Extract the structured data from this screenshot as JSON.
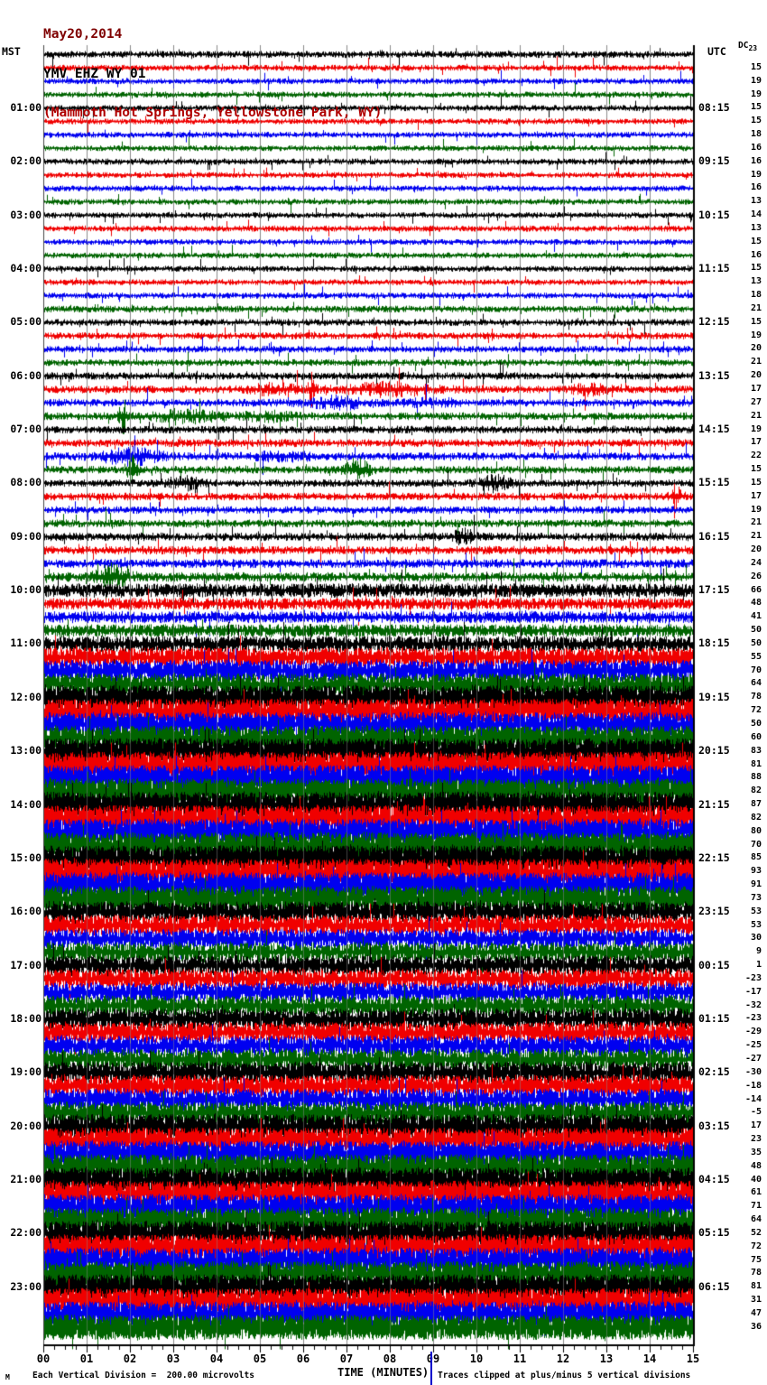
{
  "header": {
    "date": "May20,2014",
    "station": "YMV EHZ WY 01",
    "location": "(Mammoth Hot Springs, Yellowstone Park, WY)"
  },
  "labels": {
    "left_tz": "MST",
    "right_tz": "UTC",
    "dc_header_prefix": "DC"
  },
  "axis": {
    "title": "TIME (MINUTES)",
    "ticks": [
      "00",
      "01",
      "02",
      "03",
      "04",
      "05",
      "06",
      "07",
      "08",
      "09",
      "10",
      "11",
      "12",
      "13",
      "14",
      "15"
    ]
  },
  "footer": {
    "watermark": "M",
    "scale_note": "Each Vertical Division =  200.00 microvolts",
    "clip_note": "Traces clipped at plus/minus 5 vertical divisions"
  },
  "colors": {
    "grid": "#8a8a8a",
    "axis": "#000000",
    "divider_blue": "#0000cc",
    "date_text": "#7f0000",
    "location_text": "#b00000"
  },
  "chart_data": {
    "type": "helicorder",
    "title": "YMV EHZ WY 01 (Mammoth Hot Springs, Yellowstone Park, WY) May20,2014",
    "xlabel": "TIME (MINUTES)",
    "x_range_minutes": [
      0,
      15
    ],
    "minutes_per_line": 15,
    "lines": 96,
    "scale_microvolts_per_division": 200.0,
    "clip_divisions": 5,
    "left_timezone": "MST",
    "right_timezone": "UTC",
    "trace_color_cycle": [
      "#000000",
      "#f00000",
      "#0000f0",
      "#006400"
    ],
    "rows": [
      {
        "mst": "",
        "utc": "",
        "dc": 23,
        "a": 3.0
      },
      {
        "dc": 15,
        "a": 2.6
      },
      {
        "dc": 19,
        "a": 2.5
      },
      {
        "dc": 19,
        "a": 2.6
      },
      {
        "mst": "01:00",
        "utc": "08:15",
        "dc": 15,
        "a": 2.6
      },
      {
        "dc": 15,
        "a": 2.5
      },
      {
        "dc": 18,
        "a": 2.6
      },
      {
        "dc": 16,
        "a": 2.5
      },
      {
        "mst": "02:00",
        "utc": "09:15",
        "dc": 16,
        "a": 2.7
      },
      {
        "dc": 19,
        "a": 2.5
      },
      {
        "dc": 16,
        "a": 2.5
      },
      {
        "dc": 13,
        "a": 2.5
      },
      {
        "mst": "03:00",
        "utc": "10:15",
        "dc": 14,
        "a": 2.5
      },
      {
        "dc": 13,
        "a": 2.6
      },
      {
        "dc": 15,
        "a": 2.5
      },
      {
        "dc": 16,
        "a": 2.5
      },
      {
        "mst": "04:00",
        "utc": "11:15",
        "dc": 15,
        "a": 2.6
      },
      {
        "dc": 13,
        "a": 2.5
      },
      {
        "dc": 18,
        "a": 2.7
      },
      {
        "dc": 21,
        "a": 2.9
      },
      {
        "mst": "05:00",
        "utc": "12:15",
        "dc": 15,
        "a": 3.0
      },
      {
        "dc": 19,
        "a": 3.0
      },
      {
        "dc": 20,
        "a": 2.9
      },
      {
        "dc": 21,
        "a": 3.0
      },
      {
        "mst": "06:00",
        "utc": "13:15",
        "dc": 20,
        "a": 3.3,
        "d": 0.03
      },
      {
        "dc": 17,
        "a": 3.4,
        "e": [
          [
            5.3,
            0.35,
            1.2
          ],
          [
            6.2,
            0.06,
            4
          ],
          [
            7.9,
            0.7,
            1.3
          ],
          [
            12.6,
            0.3,
            1
          ]
        ]
      },
      {
        "dc": 27,
        "a": 3.4,
        "e": [
          [
            6.8,
            0.5,
            1.2
          ],
          [
            9,
            0.4,
            0.8
          ]
        ]
      },
      {
        "dc": 21,
        "a": 3.4,
        "e": [
          [
            1.85,
            0.07,
            4.5
          ],
          [
            3.3,
            0.5,
            1.4
          ],
          [
            5.2,
            0.4,
            0.9
          ]
        ]
      },
      {
        "mst": "07:00",
        "utc": "14:15",
        "dc": 19,
        "a": 3.4
      },
      {
        "dc": 17,
        "a": 3.5,
        "d": 0.04
      },
      {
        "dc": 22,
        "a": 3.5,
        "e": [
          [
            2,
            0.45,
            1.8
          ],
          [
            5.5,
            0.5,
            0.7
          ]
        ]
      },
      {
        "dc": 15,
        "a": 3.4,
        "e": [
          [
            2.05,
            0.08,
            3.5
          ],
          [
            7.2,
            0.2,
            2.8
          ]
        ]
      },
      {
        "mst": "08:00",
        "utc": "15:15",
        "dc": 15,
        "a": 3.3,
        "e": [
          [
            3.2,
            0.25,
            1.6
          ],
          [
            10.4,
            0.25,
            2
          ]
        ]
      },
      {
        "dc": 17,
        "a": 3.4,
        "e": [
          [
            14.6,
            0.08,
            3
          ]
        ]
      },
      {
        "dc": 19,
        "a": 3.3
      },
      {
        "dc": 21,
        "a": 3.4
      },
      {
        "mst": "09:00",
        "utc": "16:15",
        "dc": 21,
        "a": 3.7,
        "d": 0.05,
        "e": [
          [
            9.7,
            0.15,
            1.5
          ]
        ]
      },
      {
        "dc": 20,
        "a": 3.8,
        "d": 0.05
      },
      {
        "dc": 24,
        "a": 4.0,
        "d": 0.07
      },
      {
        "dc": 26,
        "a": 4.2,
        "d": 0.08,
        "e": [
          [
            1.6,
            0.25,
            2.2
          ]
        ]
      },
      {
        "mst": "10:00",
        "utc": "17:15",
        "dc": 66,
        "a": 6.5,
        "d": 0.4
      },
      {
        "dc": 48,
        "a": 5.5,
        "d": 0.32
      },
      {
        "dc": 41,
        "a": 5.5,
        "d": 0.3
      },
      {
        "dc": 50,
        "a": 6.0,
        "d": 0.36
      },
      {
        "mst": "11:00",
        "utc": "18:15",
        "dc": 50,
        "a": 7.5,
        "d": 0.48
      },
      {
        "dc": 55,
        "a": 9.5,
        "d": 0.6
      },
      {
        "dc": 70,
        "a": 10.5,
        "d": 0.68
      },
      {
        "dc": 64,
        "a": 10.5,
        "d": 0.68
      },
      {
        "mst": "12:00",
        "utc": "19:15",
        "dc": 78,
        "a": 12,
        "d": 0.78
      },
      {
        "dc": 72,
        "a": 12,
        "d": 0.78
      },
      {
        "dc": 50,
        "a": 12,
        "d": 0.76
      },
      {
        "dc": 60,
        "a": 12,
        "d": 0.78
      },
      {
        "mst": "13:00",
        "utc": "20:15",
        "dc": 83,
        "a": 12.8,
        "d": 0.84
      },
      {
        "dc": 81,
        "a": 12.8,
        "d": 0.84,
        "e": [
          [
            1.8,
            0.2,
            0.5
          ],
          [
            6.4,
            0.15,
            0.6
          ]
        ]
      },
      {
        "dc": 88,
        "a": 12.8,
        "d": 0.85
      },
      {
        "dc": 82,
        "a": 12.8,
        "d": 0.84
      },
      {
        "mst": "14:00",
        "utc": "21:15",
        "dc": 87,
        "a": 12.8,
        "d": 0.85
      },
      {
        "dc": 82,
        "a": 12.8,
        "d": 0.84
      },
      {
        "dc": 80,
        "a": 12.8,
        "d": 0.84
      },
      {
        "dc": 70,
        "a": 12.6,
        "d": 0.82
      },
      {
        "mst": "15:00",
        "utc": "22:15",
        "dc": 85,
        "a": 12.8,
        "d": 0.85
      },
      {
        "dc": 93,
        "a": 12.8,
        "d": 0.86
      },
      {
        "dc": 91,
        "a": 12.8,
        "d": 0.86
      },
      {
        "dc": 73,
        "a": 12.6,
        "d": 0.82
      },
      {
        "mst": "16:00",
        "utc": "23:15",
        "dc": 53,
        "a": 10,
        "d": 0.62
      },
      {
        "dc": 53,
        "a": 10,
        "d": 0.62
      },
      {
        "dc": 30,
        "a": 9.5,
        "d": 0.58
      },
      {
        "dc": 9,
        "a": 9.5,
        "d": 0.56
      },
      {
        "mst": "17:00",
        "utc": "00:15",
        "dc": 1,
        "a": 9.5,
        "d": 0.56
      },
      {
        "dc": -23,
        "a": 9.5,
        "d": 0.58
      },
      {
        "dc": -17,
        "a": 9.5,
        "d": 0.58
      },
      {
        "dc": -32,
        "a": 10,
        "d": 0.6
      },
      {
        "mst": "18:00",
        "utc": "01:15",
        "dc": -23,
        "a": 10,
        "d": 0.62
      },
      {
        "dc": -29,
        "a": 10,
        "d": 0.62
      },
      {
        "dc": -25,
        "a": 10,
        "d": 0.62
      },
      {
        "dc": -27,
        "a": 10,
        "d": 0.62
      },
      {
        "mst": "19:00",
        "utc": "02:15",
        "dc": -30,
        "a": 10.5,
        "d": 0.64
      },
      {
        "dc": -18,
        "a": 10.5,
        "d": 0.64
      },
      {
        "dc": -14,
        "a": 10.5,
        "d": 0.64
      },
      {
        "dc": -5,
        "a": 11,
        "d": 0.68
      },
      {
        "mst": "20:00",
        "utc": "03:15",
        "dc": 17,
        "a": 12,
        "d": 0.78
      },
      {
        "dc": 23,
        "a": 12,
        "d": 0.78
      },
      {
        "dc": 35,
        "a": 12.2,
        "d": 0.79
      },
      {
        "dc": 48,
        "a": 12.2,
        "d": 0.79
      },
      {
        "mst": "21:00",
        "utc": "04:15",
        "dc": 40,
        "a": 12.2,
        "d": 0.8
      },
      {
        "dc": 61,
        "a": 12.4,
        "d": 0.81
      },
      {
        "dc": 71,
        "a": 12.4,
        "d": 0.81
      },
      {
        "dc": 64,
        "a": 12.4,
        "d": 0.81
      },
      {
        "mst": "22:00",
        "utc": "05:15",
        "dc": 52,
        "a": 12.4,
        "d": 0.81
      },
      {
        "dc": 72,
        "a": 12.4,
        "d": 0.82
      },
      {
        "dc": 75,
        "a": 12.5,
        "d": 0.82
      },
      {
        "dc": 78,
        "a": 12.5,
        "d": 0.82
      },
      {
        "mst": "23:00",
        "utc": "06:15",
        "dc": 81,
        "a": 12.5,
        "d": 0.83
      },
      {
        "dc": 31,
        "a": 12.2,
        "d": 0.79
      },
      {
        "dc": 47,
        "a": 12.4,
        "d": 0.81
      },
      {
        "dc": 36,
        "a": 12.4,
        "d": 0.81
      }
    ]
  }
}
